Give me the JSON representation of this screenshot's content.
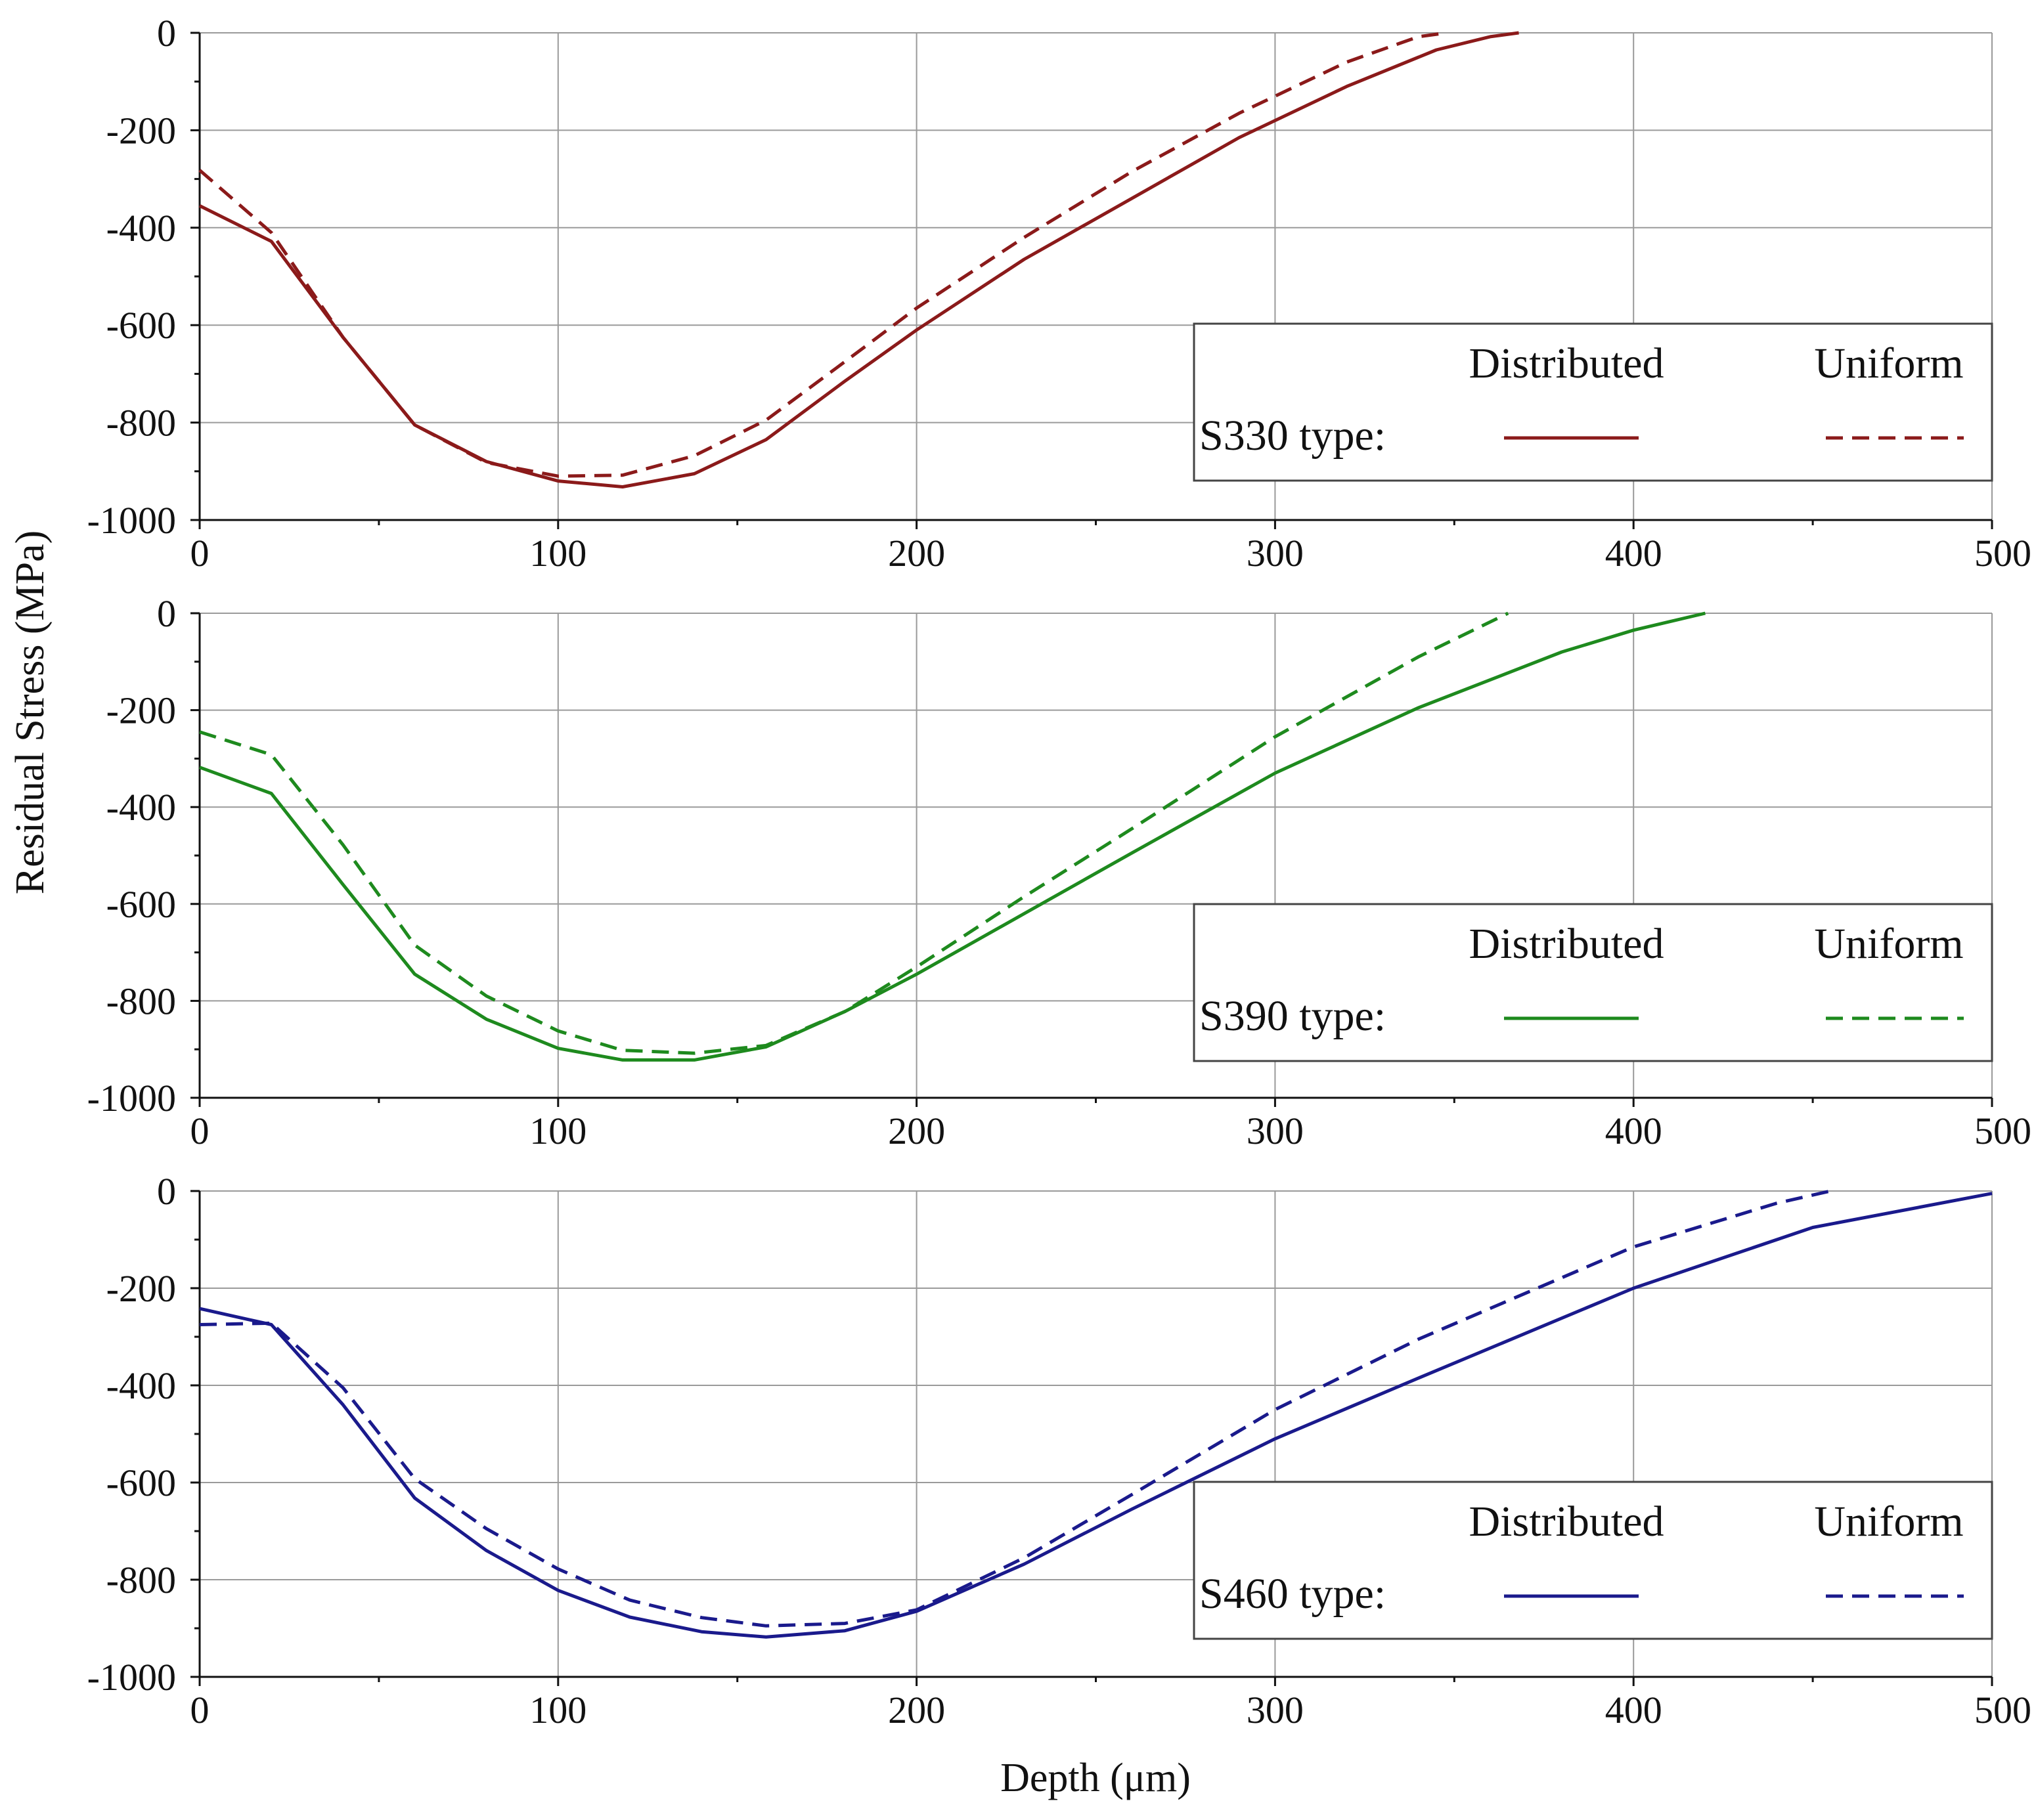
{
  "chart_data": [
    {
      "type": "line",
      "panel": "top",
      "color": "#8b1a1a",
      "xlim": [
        0,
        500
      ],
      "ylim": [
        -1000,
        0
      ],
      "xticks": [
        0,
        100,
        200,
        300,
        400,
        500
      ],
      "yticks": [
        0,
        -200,
        -400,
        -600,
        -800,
        -1000
      ],
      "grid": true,
      "legend": {
        "placement": "bottom-right",
        "header_distributed": "Distributed",
        "header_uniform": "Uniform",
        "row_label": "S330 type:"
      },
      "series": [
        {
          "name": "Distributed",
          "style": "solid",
          "x": [
            0,
            20,
            40,
            60,
            80,
            100,
            118,
            138,
            158,
            180,
            200,
            230,
            260,
            290,
            320,
            345,
            360,
            368
          ],
          "y": [
            -355,
            -428,
            -625,
            -805,
            -880,
            -920,
            -932,
            -905,
            -835,
            -715,
            -610,
            -465,
            -340,
            -215,
            -110,
            -35,
            -8,
            0
          ]
        },
        {
          "name": "Uniform",
          "style": "dashed",
          "x": [
            0,
            20,
            40,
            60,
            80,
            100,
            118,
            138,
            158,
            180,
            200,
            230,
            260,
            290,
            320,
            340,
            348
          ],
          "y": [
            -282,
            -410,
            -625,
            -805,
            -882,
            -910,
            -908,
            -868,
            -795,
            -675,
            -565,
            -420,
            -285,
            -165,
            -60,
            -8,
            0
          ]
        }
      ]
    },
    {
      "type": "line",
      "panel": "middle",
      "color": "#1e8a1e",
      "xlim": [
        0,
        500
      ],
      "ylim": [
        -1000,
        0
      ],
      "xticks": [
        0,
        100,
        200,
        300,
        400,
        500
      ],
      "yticks": [
        0,
        -200,
        -400,
        -600,
        -800,
        -1000
      ],
      "grid": true,
      "legend": {
        "placement": "bottom-right",
        "header_distributed": "Distributed",
        "header_uniform": "Uniform",
        "row_label": "S390 type:"
      },
      "series": [
        {
          "name": "Distributed",
          "style": "solid",
          "x": [
            0,
            20,
            40,
            60,
            80,
            100,
            118,
            138,
            158,
            180,
            200,
            230,
            260,
            300,
            340,
            380,
            400,
            420
          ],
          "y": [
            -318,
            -372,
            -560,
            -745,
            -838,
            -898,
            -922,
            -922,
            -895,
            -822,
            -745,
            -620,
            -495,
            -330,
            -195,
            -80,
            -35,
            0
          ]
        },
        {
          "name": "Uniform",
          "style": "dashed",
          "x": [
            0,
            20,
            40,
            60,
            80,
            100,
            118,
            138,
            158,
            180,
            200,
            230,
            260,
            300,
            340,
            365
          ],
          "y": [
            -245,
            -292,
            -478,
            -685,
            -790,
            -862,
            -902,
            -908,
            -892,
            -822,
            -730,
            -585,
            -445,
            -255,
            -90,
            0
          ]
        }
      ]
    },
    {
      "type": "line",
      "panel": "bottom",
      "color": "#1a1a8c",
      "xlim": [
        0,
        500
      ],
      "ylim": [
        -1000,
        0
      ],
      "xticks": [
        0,
        100,
        200,
        300,
        400,
        500
      ],
      "yticks": [
        0,
        -200,
        -400,
        -600,
        -800,
        -1000
      ],
      "grid": true,
      "legend": {
        "placement": "bottom-right",
        "header_distributed": "Distributed",
        "header_uniform": "Uniform",
        "row_label": "S460 type:"
      },
      "series": [
        {
          "name": "Distributed",
          "style": "solid",
          "x": [
            0,
            20,
            40,
            60,
            80,
            100,
            120,
            140,
            158,
            180,
            200,
            230,
            260,
            300,
            340,
            400,
            450,
            500
          ],
          "y": [
            -242,
            -275,
            -440,
            -632,
            -740,
            -822,
            -877,
            -907,
            -918,
            -905,
            -865,
            -768,
            -655,
            -510,
            -385,
            -200,
            -75,
            -5
          ]
        },
        {
          "name": "Uniform",
          "style": "dashed",
          "x": [
            0,
            20,
            40,
            60,
            80,
            100,
            120,
            140,
            158,
            180,
            200,
            230,
            260,
            300,
            340,
            400,
            440,
            455
          ],
          "y": [
            -275,
            -272,
            -405,
            -592,
            -695,
            -778,
            -842,
            -878,
            -895,
            -890,
            -862,
            -755,
            -625,
            -450,
            -305,
            -115,
            -25,
            0
          ]
        }
      ]
    }
  ],
  "axes": {
    "ylabel": "Residual Stress (MPa)",
    "xlabel": "Depth (μm)"
  }
}
